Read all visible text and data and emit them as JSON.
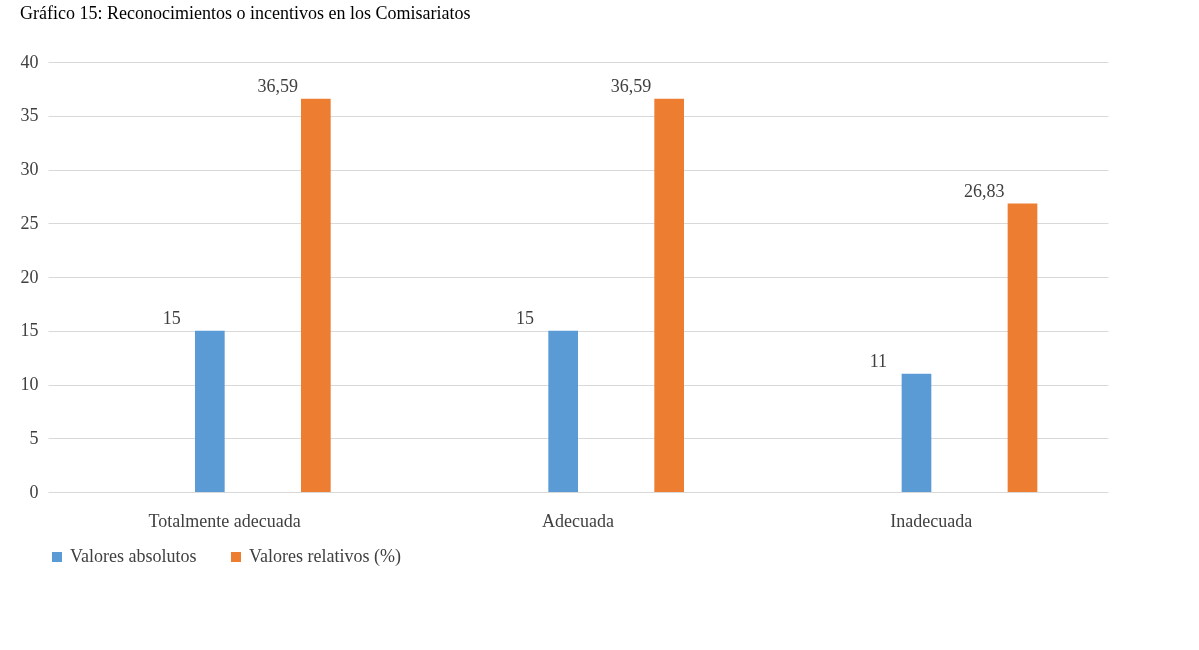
{
  "chart_data": {
    "type": "bar",
    "title": "Gráfico 15: Reconocimientos o incentivos en los Comisariatos",
    "categories": [
      "Totalmente adecuada",
      "Adecuada",
      "Inadecuada"
    ],
    "series": [
      {
        "name": "Valores absolutos",
        "color": "#5b9bd5",
        "values": [
          15,
          15,
          11
        ]
      },
      {
        "name": "Valores relativos (%)",
        "color": "#ed7d31",
        "values": [
          36.59,
          36.59,
          26.83
        ]
      }
    ],
    "value_labels": [
      [
        "15",
        "15",
        "11"
      ],
      [
        "36,59",
        "36,59",
        "26,83"
      ]
    ],
    "ylim": [
      0,
      40
    ],
    "yticks": [
      0,
      5,
      10,
      15,
      20,
      25,
      30,
      35,
      40
    ],
    "grid": "y",
    "legend": "bottom"
  }
}
